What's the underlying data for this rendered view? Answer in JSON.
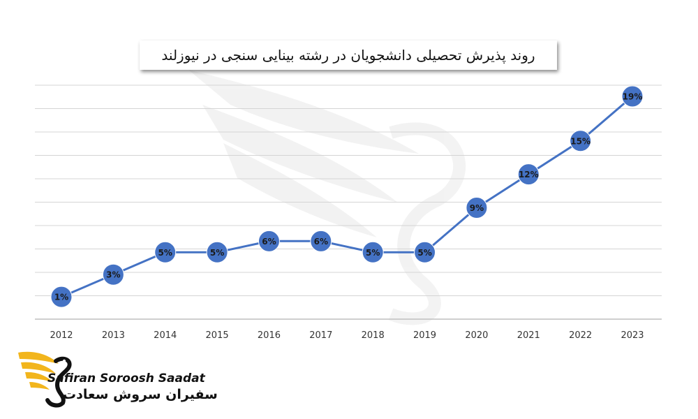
{
  "chart_data": {
    "type": "line",
    "title": "روند پذیرش تحصیلی دانشجویان در رشته بینایی سنجی در نیوزلند",
    "categories": [
      "2012",
      "2013",
      "2014",
      "2015",
      "2016",
      "2017",
      "2018",
      "2019",
      "2020",
      "2021",
      "2022",
      "2023"
    ],
    "series": [
      {
        "values": [
          1,
          3,
          5,
          5,
          6,
          6,
          5,
          5,
          9,
          12,
          15,
          19
        ]
      }
    ],
    "data_labels": [
      "1%",
      "3%",
      "5%",
      "5%",
      "6%",
      "6%",
      "5%",
      "5%",
      "9%",
      "12%",
      "15%",
      "19%"
    ],
    "ylim": [
      -1,
      20
    ],
    "grid": true,
    "legend": "none",
    "colors": {
      "line": "#4472c4",
      "marker": "#4472c4",
      "label": "#1a1a1a",
      "grid": "#d4d4d4"
    }
  },
  "brand": {
    "name_en": "Safiran Soroosh Saadat",
    "name_fa": "سفیران سروش سعادت",
    "icon": "wing-swan-logo-icon",
    "colors": {
      "wing": "#f2b51c",
      "swan": "#111111"
    }
  }
}
